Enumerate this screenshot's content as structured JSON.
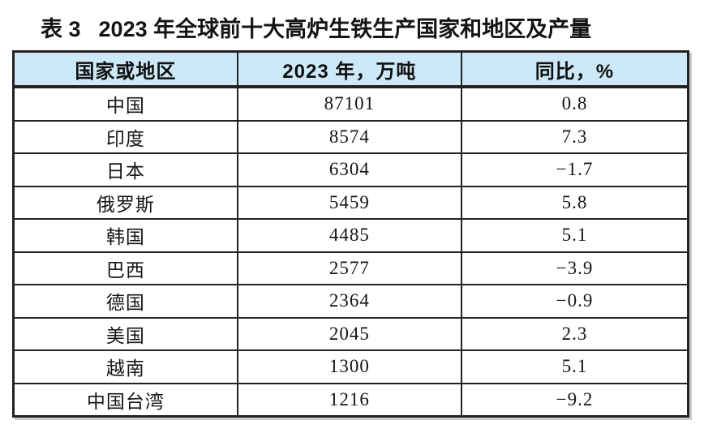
{
  "title": {
    "label": "表 3",
    "text": "2023 年全球前十大高炉生铁生产国家和地区及产量"
  },
  "table": {
    "columns": [
      "国家或地区",
      "2023 年，万吨",
      "同比，%"
    ],
    "cell_names": [
      "country-cell",
      "output-cell",
      "yoy-cell"
    ],
    "rows": [
      [
        "中国",
        "87101",
        "0.8"
      ],
      [
        "印度",
        "8574",
        "7.3"
      ],
      [
        "日本",
        "6304",
        "−1.7"
      ],
      [
        "俄罗斯",
        "5459",
        "5.8"
      ],
      [
        "韩国",
        "4485",
        "5.1"
      ],
      [
        "巴西",
        "2577",
        "−3.9"
      ],
      [
        "德国",
        "2364",
        "−0.9"
      ],
      [
        "美国",
        "2045",
        "2.3"
      ],
      [
        "越南",
        "1300",
        "5.1"
      ],
      [
        "中国台湾",
        "1216",
        "−9.2"
      ]
    ]
  },
  "colors": {
    "header_bg": "#cde9f8",
    "border": "#242122",
    "shadow": "#c9c9c9",
    "text": "#151515"
  },
  "chart_data": {
    "type": "table",
    "title": "表 3 2023 年全球前十大高炉生铁生产国家和地区及产量",
    "columns": [
      "国家或地区",
      "2023 年，万吨",
      "同比，%"
    ],
    "categories": [
      "中国",
      "印度",
      "日本",
      "俄罗斯",
      "韩国",
      "巴西",
      "德国",
      "美国",
      "越南",
      "中国台湾"
    ],
    "series": [
      {
        "name": "2023 年，万吨",
        "values": [
          87101,
          8574,
          6304,
          5459,
          4485,
          2577,
          2364,
          2045,
          1300,
          1216
        ]
      },
      {
        "name": "同比，%",
        "values": [
          0.8,
          7.3,
          -1.7,
          5.8,
          5.1,
          -3.9,
          -0.9,
          2.3,
          5.1,
          -9.2
        ]
      }
    ]
  }
}
